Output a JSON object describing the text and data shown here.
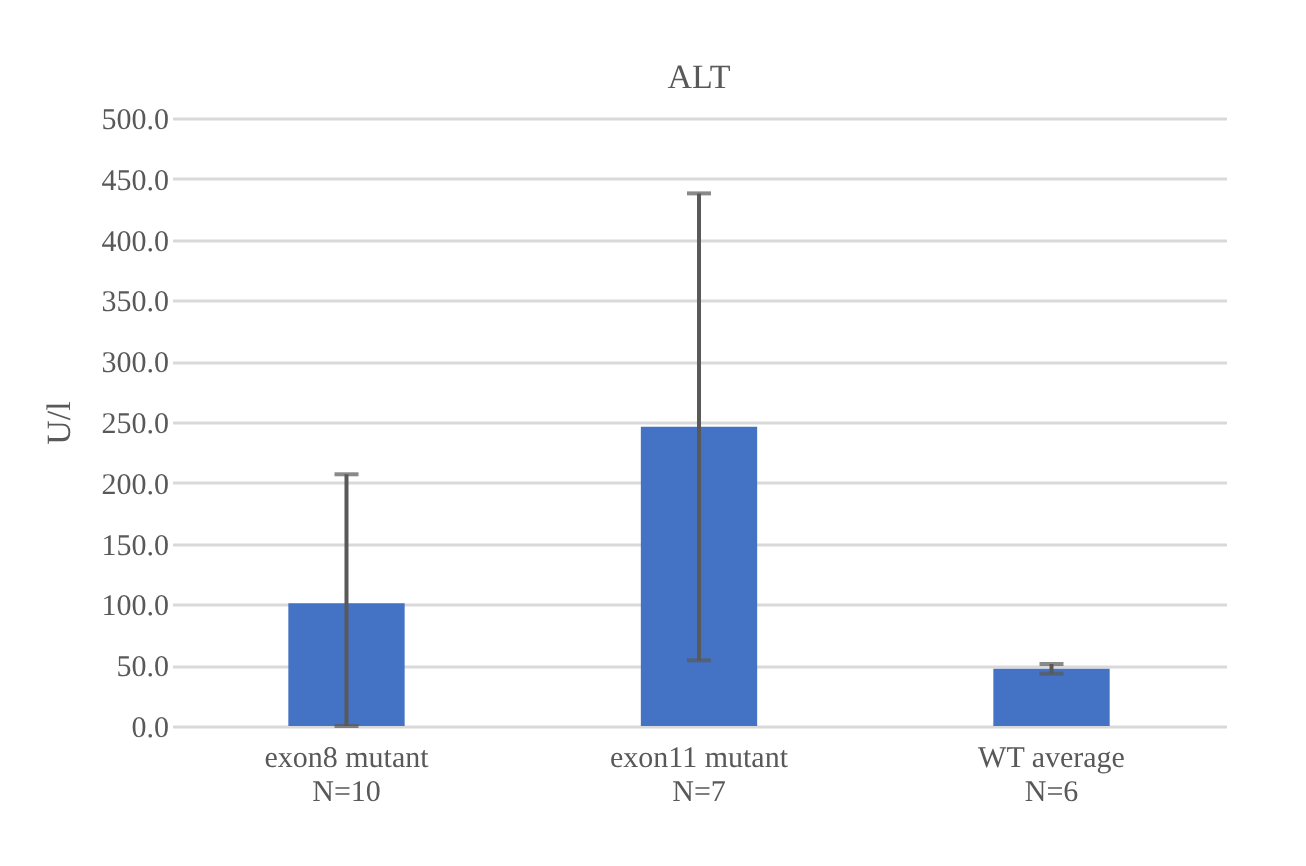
{
  "chart_data": {
    "type": "bar",
    "title": "ALT",
    "ylabel": "U/l",
    "categories": [
      "exon8 mutant\nN=10",
      "exon11 mutant\nN=7",
      "WT average\nN=6"
    ],
    "values": [
      101,
      246,
      47
    ],
    "errors": [
      [
        0,
        207
      ],
      192,
      4
    ],
    "color": "#4472c4",
    "ylim": [
      0,
      500
    ],
    "yticks": [
      {
        "value": 0,
        "label": "0.0"
      },
      {
        "value": 50,
        "label": "50.0"
      },
      {
        "value": 100,
        "label": "100.0"
      },
      {
        "value": 150,
        "label": "150.0"
      },
      {
        "value": 200,
        "label": "200.0"
      },
      {
        "value": 250,
        "label": "250.0"
      },
      {
        "value": 300,
        "label": "300.0"
      },
      {
        "value": 350,
        "label": "350.0"
      },
      {
        "value": 400,
        "label": "400.0"
      },
      {
        "value": 450,
        "label": "450.0"
      },
      {
        "value": 500,
        "label": "500.0"
      }
    ],
    "grid": "y"
  }
}
